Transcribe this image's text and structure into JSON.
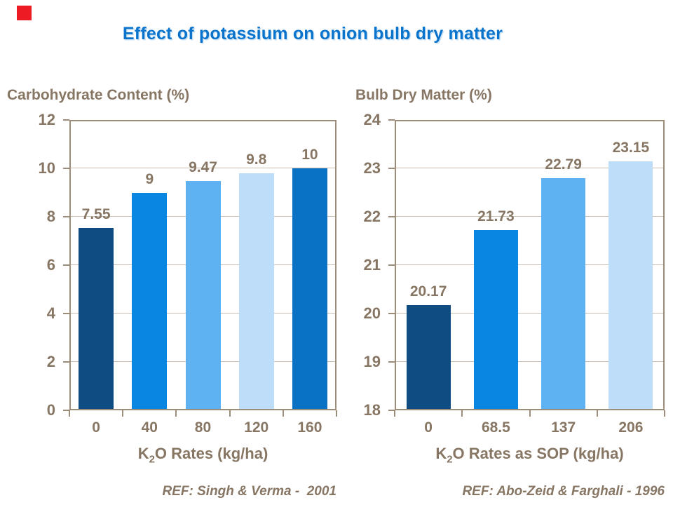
{
  "page": {
    "title": "Effect of potassium on onion bulb dry matter",
    "title_color": "#0A74CC",
    "text_color": "#877663",
    "marker_color": "#ED1C24",
    "axis_border_color": "#9C8C7A",
    "gridline_color": "#C8BFB2"
  },
  "chart_data": [
    {
      "type": "bar",
      "title": "Carbohydrate Content (%)",
      "categories": [
        "0",
        "40",
        "80",
        "120",
        "160"
      ],
      "values": [
        7.55,
        9,
        9.47,
        9.8,
        10
      ],
      "value_labels": [
        "7.55",
        "9",
        "9.47",
        "9.8",
        "10"
      ],
      "bar_colors": [
        "#0E4C82",
        "#0886E2",
        "#5FB2F2",
        "#BDDDF9",
        "#0A72C4"
      ],
      "xlabel": "K2O Rates (kg/ha)",
      "xlabel_parts": {
        "pre": "K",
        "sub": "2",
        "post": "O Rates (kg/ha)"
      },
      "ylabel": "",
      "ylim": [
        0,
        12
      ],
      "yticks": [
        0,
        2,
        4,
        6,
        8,
        10,
        12
      ],
      "grid": true,
      "legend": "none",
      "ref": "REF: Singh & Verma -  2001"
    },
    {
      "type": "bar",
      "title": "Bulb Dry Matter (%)",
      "categories": [
        "0",
        "68.5",
        "137",
        "206"
      ],
      "values": [
        20.17,
        21.73,
        22.79,
        23.15
      ],
      "value_labels": [
        "20.17",
        "21.73",
        "22.79",
        "23.15"
      ],
      "bar_colors": [
        "#0E4C82",
        "#0886E2",
        "#5FB2F2",
        "#BDDDF9"
      ],
      "xlabel": "K2O Rates as SOP (kg/ha)",
      "xlabel_parts": {
        "pre": "K",
        "sub": "2",
        "post": "O Rates as SOP (kg/ha)"
      },
      "ylabel": "",
      "ylim": [
        18,
        24
      ],
      "yticks": [
        18,
        19,
        20,
        21,
        22,
        23,
        24
      ],
      "grid": true,
      "legend": "none",
      "ref": "REF: Abo-Zeid & Farghali - 1996"
    }
  ]
}
